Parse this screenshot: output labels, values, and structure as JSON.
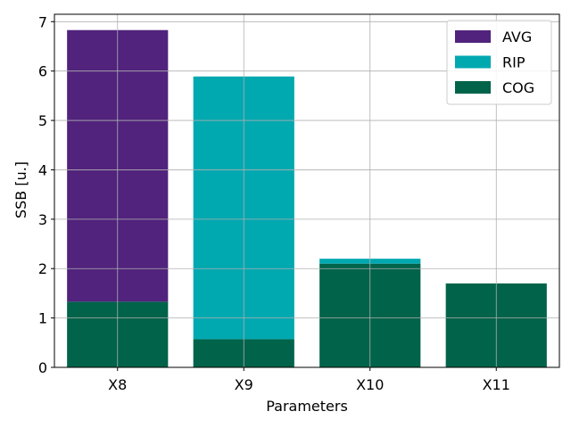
{
  "chart_data": {
    "type": "bar",
    "stacked": true,
    "xlabel": "Parameters",
    "ylabel": "SSB [u.]",
    "categories": [
      "X8",
      "X9",
      "X10",
      "X11"
    ],
    "ylim": [
      0,
      7.15
    ],
    "yticks": [
      0,
      1,
      2,
      3,
      4,
      5,
      6,
      7
    ],
    "grid": true,
    "legend_position": "top-right",
    "series": [
      {
        "name": "COG",
        "color": "#00634a",
        "values": [
          1.33,
          0.57,
          2.1,
          1.7
        ]
      },
      {
        "name": "RIP",
        "color": "#00a8b0",
        "values": [
          0,
          5.32,
          0.1,
          0
        ]
      },
      {
        "name": "AVG",
        "color": "#51237c",
        "values": [
          5.5,
          0,
          0,
          0
        ]
      }
    ],
    "legend_order": [
      "AVG",
      "RIP",
      "COG"
    ],
    "tick_labels_y": [
      "0",
      "1",
      "2",
      "3",
      "4",
      "5",
      "6",
      "7"
    ]
  }
}
